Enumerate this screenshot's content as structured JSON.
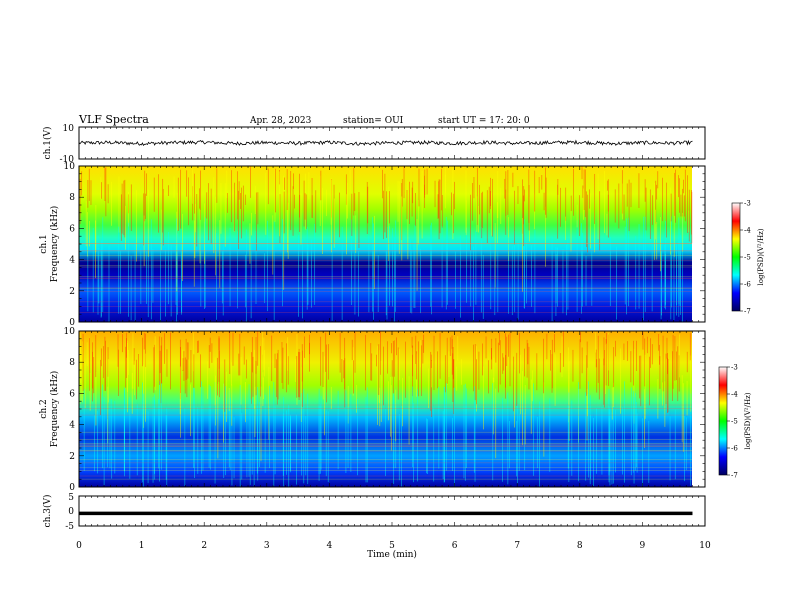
{
  "header": {
    "title": "VLF Spectra",
    "date": "Apr. 28, 2023",
    "station": "station= OUI",
    "start": "start UT = 17: 20: 0"
  },
  "colors": {
    "waveform": "#000000",
    "colormap": [
      "#000060",
      "#0000ff",
      "#00ffff",
      "#00ff00",
      "#ffff00",
      "#ff0000",
      "#ffffff"
    ]
  },
  "chart_data": [
    {
      "type": "line",
      "name": "ch1-waveform",
      "ylabel": "ch.1(V)",
      "ylim": [
        -10,
        10
      ],
      "yticks": [
        "10",
        "-10"
      ],
      "x": [
        0,
        0.5,
        1,
        1.5,
        2,
        2.5,
        3,
        3.5,
        4,
        4.5,
        5,
        5.5,
        6,
        6.5,
        7,
        7.5,
        8,
        8.5,
        9,
        9.5,
        9.8
      ],
      "values": [
        0,
        0.3,
        -0.4,
        0.2,
        0.5,
        -0.3,
        0.2,
        -0.2,
        0.4,
        -0.5,
        0.1,
        0.3,
        -0.2,
        0.4,
        -0.3,
        0.2,
        0.5,
        -0.4,
        0.2,
        -0.1,
        0.3
      ],
      "xlim": [
        0,
        10
      ]
    },
    {
      "type": "heatmap",
      "name": "ch1-spectrogram",
      "ylabel_line1": "ch.1",
      "ylabel_line2": "Frequency (kHz)",
      "ylim": [
        0,
        10
      ],
      "yticks": [
        "0",
        "2",
        "4",
        "6",
        "8",
        "10"
      ],
      "colorbar": {
        "label": "log(PSD)(V²/Hz)",
        "range": [
          -7,
          -3
        ],
        "ticks": [
          "-3",
          "-4",
          "-5",
          "-6",
          "-7"
        ]
      },
      "xlim": [
        0,
        10
      ]
    },
    {
      "type": "heatmap",
      "name": "ch2-spectrogram",
      "ylabel_line1": "ch.2",
      "ylabel_line2": "Frequency (kHz)",
      "ylim": [
        0,
        10
      ],
      "yticks": [
        "0",
        "2",
        "4",
        "6",
        "8",
        "10"
      ],
      "colorbar": {
        "label": "log(PSD)(V²/Hz)",
        "range": [
          -7,
          -3
        ],
        "ticks": [
          "-3",
          "-4",
          "-5",
          "-6",
          "-7"
        ]
      },
      "xlim": [
        0,
        10
      ]
    },
    {
      "type": "line",
      "name": "ch3-waveform",
      "ylabel": "ch.3(V)",
      "ylim": [
        -5,
        5
      ],
      "yticks": [
        "5",
        "0",
        "-5"
      ],
      "x": [
        0,
        9.8
      ],
      "values": [
        -0.8,
        -0.8
      ],
      "xlim": [
        0,
        10
      ]
    }
  ],
  "xaxis": {
    "label": "Time (min)",
    "ticks": [
      "0",
      "1",
      "2",
      "3",
      "4",
      "5",
      "6",
      "7",
      "8",
      "9",
      "10"
    ],
    "range": [
      0,
      10
    ]
  }
}
